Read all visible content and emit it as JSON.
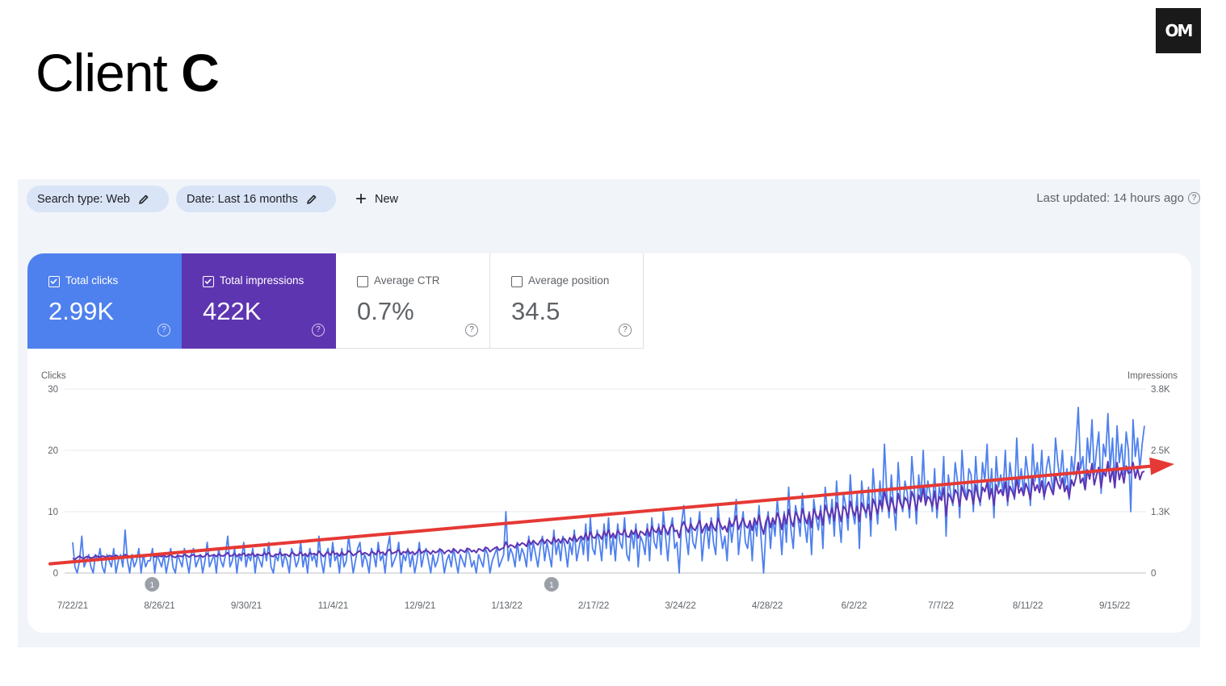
{
  "slide": {
    "title_light": "Client ",
    "title_bold": "C",
    "logo_text": "OM"
  },
  "filters": {
    "search_type": "Search type: Web",
    "date": "Date: Last 16 months",
    "new_label": "New",
    "last_updated": "Last updated: 14 hours ago"
  },
  "metrics": [
    {
      "label": "Total clicks",
      "value": "2.99K",
      "checked": true,
      "color": "#4e80ee"
    },
    {
      "label": "Total impressions",
      "value": "422K",
      "checked": true,
      "color": "#5e35b1"
    },
    {
      "label": "Average CTR",
      "value": "0.7%",
      "checked": false
    },
    {
      "label": "Average position",
      "value": "34.5",
      "checked": false
    }
  ],
  "colors": {
    "clicks": "#4e80ee",
    "impressions": "#5e35b1",
    "trend_arrow": "#e53935",
    "grid": "#e8eaed"
  },
  "chart_data": {
    "type": "line",
    "left_axis_label": "Clicks",
    "right_axis_label": "Impressions",
    "left_ticks": [
      "0",
      "10",
      "20",
      "30"
    ],
    "left_ylim": [
      0,
      30
    ],
    "right_ticks": [
      "0",
      "1.3K",
      "2.5K",
      "3.8K"
    ],
    "right_ylim": [
      0,
      3800
    ],
    "x_tick_labels": [
      "7/22/21",
      "8/26/21",
      "9/30/21",
      "11/4/21",
      "12/9/21",
      "1/13/22",
      "2/17/22",
      "3/24/22",
      "4/28/22",
      "6/2/22",
      "7/7/22",
      "8/11/22",
      "9/15/22"
    ],
    "x_range": [
      "2021-07-22",
      "2022-09-27"
    ],
    "annotations": [
      {
        "date": "2021-08-23",
        "label": "1"
      },
      {
        "date": "2022-01-31",
        "label": "1"
      }
    ],
    "trend": {
      "start_clicks": 1.5,
      "end_clicks": 17.5,
      "note": "red trend arrow"
    },
    "grid": true,
    "series": [
      {
        "name": "Clicks",
        "axis": "left",
        "values": [
          5,
          1,
          0,
          2,
          6,
          1,
          2,
          3,
          1,
          0,
          3,
          2,
          4,
          1,
          0,
          3,
          2,
          1,
          4,
          0,
          2,
          3,
          1,
          7,
          2,
          0,
          3,
          1,
          2,
          4,
          0,
          3,
          1,
          2,
          2,
          4,
          0,
          3,
          2,
          1,
          3,
          0,
          2,
          4,
          1,
          0,
          3,
          2,
          1,
          4,
          2,
          0,
          3,
          4,
          1,
          2,
          3,
          0,
          2,
          5,
          1,
          2,
          3,
          0,
          4,
          2,
          1,
          3,
          6,
          1,
          2,
          4,
          0,
          3,
          2,
          5,
          1,
          3,
          2,
          4,
          0,
          3,
          2,
          1,
          4,
          2,
          5,
          1,
          0,
          3,
          2,
          4,
          1,
          3,
          2,
          0,
          4,
          3,
          1,
          2,
          5,
          1,
          3,
          0,
          4,
          2,
          3,
          1,
          6,
          2,
          0,
          3,
          4,
          1,
          5,
          2,
          3,
          0,
          4,
          1,
          2,
          6,
          3,
          0,
          2,
          4,
          5,
          1,
          3,
          2,
          0,
          4,
          3,
          1,
          5,
          2,
          3,
          0,
          4,
          6,
          1,
          2,
          3,
          5,
          0,
          3,
          2,
          4,
          1,
          3,
          0,
          2,
          5,
          1,
          3,
          4,
          2,
          0,
          3,
          1,
          2,
          4,
          3,
          0,
          2,
          3,
          1,
          4,
          2,
          0,
          3,
          2,
          1,
          4,
          3,
          1,
          2,
          0,
          3,
          2,
          1,
          4,
          3,
          0,
          2,
          3,
          4,
          1,
          2,
          3,
          10,
          2,
          4,
          3,
          1,
          5,
          2,
          4,
          3,
          1,
          6,
          2,
          5,
          3,
          1,
          4,
          6,
          2,
          5,
          3,
          1,
          7,
          3,
          5,
          2,
          6,
          4,
          1,
          5,
          3,
          7,
          2,
          4,
          6,
          3,
          8,
          2,
          9,
          4,
          3,
          7,
          5,
          2,
          8,
          4,
          9,
          3,
          6,
          2,
          8,
          5,
          4,
          9,
          3,
          2,
          7,
          4,
          8,
          1,
          6,
          5,
          3,
          8,
          2,
          9,
          5,
          4,
          8,
          3,
          10,
          6,
          2,
          7,
          9,
          4,
          5,
          0,
          8,
          11,
          6,
          3,
          9,
          5,
          4,
          7,
          10,
          2,
          6,
          8,
          4,
          9,
          5,
          3,
          11,
          7,
          4,
          6,
          2,
          9,
          5,
          8,
          12,
          3,
          7,
          10,
          5,
          4,
          8,
          2,
          9,
          6,
          11,
          5,
          0,
          7,
          10,
          4,
          9,
          6,
          12,
          8,
          3,
          10,
          5,
          14,
          7,
          4,
          11,
          9,
          6,
          13,
          8,
          5,
          10,
          3,
          12,
          9,
          7,
          11,
          4,
          14,
          10,
          8,
          12,
          6,
          15,
          9,
          5,
          13,
          11,
          7,
          16,
          10,
          8,
          13,
          4,
          15,
          11,
          9,
          14,
          6,
          17,
          12,
          8,
          15,
          10,
          21,
          13,
          9,
          16,
          11,
          7,
          18,
          12,
          10,
          15,
          13,
          9,
          19,
          14,
          8,
          16,
          12,
          20,
          11,
          15,
          13,
          10,
          17,
          9,
          14,
          12,
          19,
          6,
          16,
          13,
          11,
          18,
          15,
          9,
          20,
          14,
          12,
          17,
          16,
          10,
          19,
          13,
          11,
          18,
          15,
          21,
          12,
          17,
          9,
          19,
          14,
          16,
          13,
          20,
          11,
          18,
          15,
          12,
          22,
          14,
          17,
          13,
          19,
          16,
          11,
          21,
          15,
          18,
          14,
          20,
          12,
          17,
          19,
          16,
          13,
          22,
          18,
          15,
          20,
          14,
          17,
          12,
          19,
          16,
          21,
          27,
          17,
          19,
          14,
          22,
          18,
          25,
          16,
          20,
          23,
          13,
          21,
          19,
          26,
          17,
          22,
          14,
          24,
          18,
          21,
          16,
          23,
          20,
          10,
          25,
          19,
          22,
          17,
          21,
          24
        ]
      },
      {
        "name": "Impressions",
        "axis": "right",
        "values": [
          300,
          280,
          320,
          350,
          310,
          300,
          340,
          330,
          310,
          320,
          360,
          340,
          330,
          350,
          340,
          320,
          360,
          350,
          330,
          370,
          340,
          320,
          350,
          380,
          360,
          330,
          350,
          340,
          360,
          370,
          330,
          350,
          340,
          360,
          355,
          380,
          330,
          360,
          350,
          340,
          370,
          330,
          350,
          380,
          340,
          320,
          360,
          350,
          340,
          380,
          360,
          330,
          360,
          380,
          340,
          350,
          370,
          330,
          350,
          400,
          350,
          360,
          380,
          340,
          390,
          360,
          350,
          380,
          420,
          350,
          360,
          400,
          340,
          390,
          370,
          410,
          350,
          390,
          370,
          410,
          340,
          390,
          370,
          360,
          410,
          380,
          420,
          350,
          340,
          390,
          380,
          420,
          360,
          390,
          380,
          340,
          420,
          400,
          360,
          380,
          430,
          360,
          400,
          340,
          420,
          390,
          400,
          370,
          450,
          390,
          340,
          400,
          430,
          370,
          450,
          390,
          410,
          350,
          430,
          370,
          390,
          460,
          420,
          360,
          390,
          430,
          460,
          380,
          420,
          400,
          360,
          440,
          420,
          380,
          470,
          410,
          430,
          370,
          450,
          490,
          400,
          420,
          440,
          480,
          380,
          440,
          420,
          470,
          400,
          440,
          380,
          430,
          490,
          410,
          450,
          470,
          440,
          390,
          460,
          420,
          440,
          490,
          470,
          400,
          450,
          470,
          420,
          500,
          460,
          410,
          480,
          460,
          430,
          510,
          490,
          440,
          470,
          420,
          500,
          480,
          450,
          530,
          510,
          440,
          480,
          510,
          540,
          470,
          500,
          520,
          640,
          530,
          580,
          560,
          520,
          610,
          570,
          620,
          600,
          550,
          680,
          590,
          670,
          620,
          580,
          660,
          700,
          610,
          690,
          650,
          600,
          740,
          640,
          700,
          620,
          720,
          690,
          610,
          730,
          670,
          780,
          650,
          720,
          760,
          690,
          820,
          680,
          850,
          740,
          720,
          810,
          780,
          700,
          860,
          770,
          890,
          730,
          820,
          720,
          880,
          810,
          790,
          900,
          760,
          740,
          870,
          800,
          900,
          720,
          860,
          830,
          780,
          910,
          760,
          960,
          870,
          840,
          940,
          800,
          990,
          900,
          790,
          940,
          1000,
          860,
          880,
          730,
          960,
          1060,
          940,
          840,
          1010,
          920,
          880,
          990,
          1080,
          830,
          940,
          1020,
          880,
          1060,
          940,
          870,
          1130,
          1010,
          900,
          970,
          850,
          1090,
          960,
          1040,
          1180,
          900,
          1030,
          1130,
          980,
          930,
          1080,
          880,
          1120,
          1000,
          1190,
          960,
          800,
          1060,
          1170,
          940,
          1130,
          1010,
          1240,
          1120,
          900,
          1210,
          1010,
          1310,
          1080,
          960,
          1260,
          1170,
          1040,
          1330,
          1150,
          1020,
          1240,
          940,
          1320,
          1200,
          1110,
          1290,
          990,
          1400,
          1260,
          1150,
          1340,
          1080,
          1450,
          1260,
          1060,
          1380,
          1310,
          1140,
          1480,
          1300,
          1180,
          1380,
          1060,
          1450,
          1330,
          1250,
          1420,
          1100,
          1530,
          1400,
          1220,
          1500,
          1330,
          1710,
          1450,
          1280,
          1560,
          1390,
          1240,
          1640,
          1440,
          1340,
          1560,
          1490,
          1320,
          1680,
          1550,
          1290,
          1610,
          1470,
          1760,
          1410,
          1580,
          1520,
          1380,
          1690,
          1320,
          1580,
          1500,
          1760,
          1180,
          1640,
          1560,
          1450,
          1720,
          1640,
          1380,
          1800,
          1620,
          1510,
          1720,
          1680,
          1420,
          1820,
          1590,
          1470,
          1770,
          1680,
          1870,
          1540,
          1740,
          1400,
          1820,
          1640,
          1720,
          1600,
          1880,
          1480,
          1790,
          1690,
          1560,
          1960,
          1650,
          1760,
          1600,
          1850,
          1720,
          1520,
          1960,
          1700,
          1820,
          1660,
          1900,
          1580,
          1780,
          1880,
          1740,
          1620,
          2020,
          1850,
          1740,
          1960,
          1680,
          1800,
          1560,
          1920,
          1800,
          1980,
          2280,
          1860,
          1960,
          1720,
          2130,
          1940,
          2260,
          1820,
          2020,
          2180,
          1760,
          2100,
          2000,
          2300,
          1880,
          2160,
          1760,
          2280,
          1930,
          2120,
          1860,
          2210,
          2060,
          2080,
          2280,
          1960,
          2150,
          1930,
          2080,
          2100
        ]
      }
    ]
  }
}
